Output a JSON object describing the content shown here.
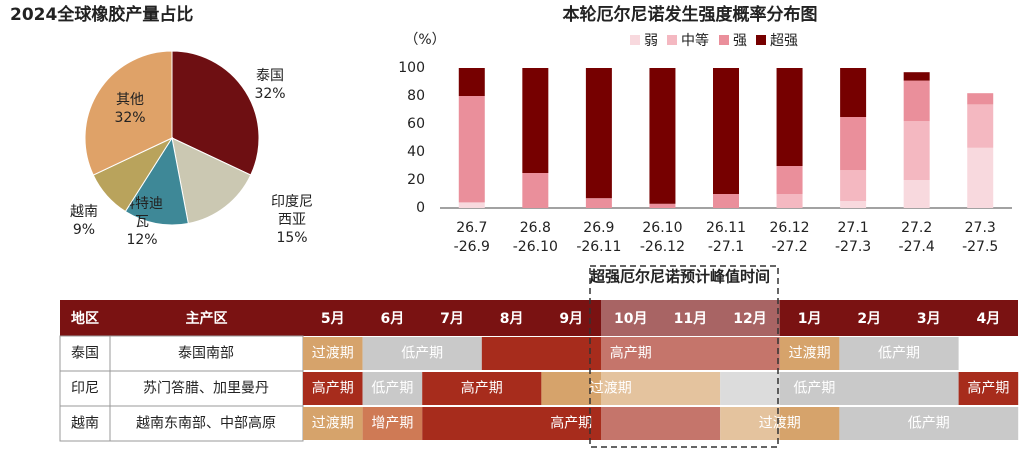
{
  "chart_data": [
    {
      "type": "pie",
      "title": "2024全球橡胶产量占比",
      "categories": [
        "泰国",
        "印度尼西亚",
        "科特迪瓦",
        "越南",
        "其他"
      ],
      "values": [
        32,
        15,
        12,
        9,
        32
      ],
      "value_labels": [
        "32%",
        "15%",
        "12%",
        "9%",
        "32%"
      ],
      "colors": [
        "#6e0f12",
        "#cbc8b2",
        "#3e8897",
        "#b9a35c",
        "#dfa268"
      ]
    },
    {
      "type": "bar",
      "stacked": true,
      "title": "本轮厄尔尼诺发生强度概率分布图",
      "y_label": "（%）",
      "categories": [
        "26.7-26.9",
        "26.8-26.10",
        "26.9-26.11",
        "26.10-26.12",
        "26.11-27.1",
        "26.12-27.2",
        "27.1-27.3",
        "27.2-27.4",
        "27.3-27.5"
      ],
      "series": [
        {
          "name": "弱",
          "color": "#f8d9de",
          "values": [
            4,
            0,
            0,
            0,
            0,
            0,
            5,
            20,
            43
          ]
        },
        {
          "name": "中等",
          "color": "#f4b8c1",
          "values": [
            0,
            0,
            0,
            0,
            0,
            10,
            22,
            42,
            31
          ]
        },
        {
          "name": "强",
          "color": "#ea8f9b",
          "values": [
            76,
            25,
            7,
            3,
            10,
            20,
            38,
            29,
            8
          ]
        },
        {
          "name": "超强",
          "color": "#760000",
          "values": [
            20,
            75,
            93,
            97,
            90,
            70,
            35,
            6,
            0
          ]
        }
      ],
      "ylim": [
        0,
        100
      ],
      "yticks": [
        0,
        20,
        40,
        60,
        80,
        100
      ],
      "legend": "top-right"
    }
  ],
  "table": {
    "title": "超强厄尔尼诺预计峰值时间",
    "header": [
      "地区",
      "主产区",
      "5月",
      "6月",
      "7月",
      "8月",
      "9月",
      "10月",
      "11月",
      "12月",
      "1月",
      "2月",
      "3月",
      "4月"
    ],
    "rows": [
      {
        "region": "泰国",
        "area": "泰国南部",
        "periods": [
          "过渡期",
          "低产期",
          "高产期",
          "过渡期",
          "低产期"
        ]
      },
      {
        "region": "印尼",
        "area": "苏门答腊、加里曼丹",
        "periods": [
          "高产期",
          "低产期",
          "高产期",
          "过渡期",
          "低产期",
          "高产期"
        ]
      },
      {
        "region": "越南",
        "area": "越南东南部、中部高原",
        "periods": [
          "过渡期",
          "增产期",
          "高产期",
          "过渡期",
          "低产期"
        ]
      }
    ]
  }
}
